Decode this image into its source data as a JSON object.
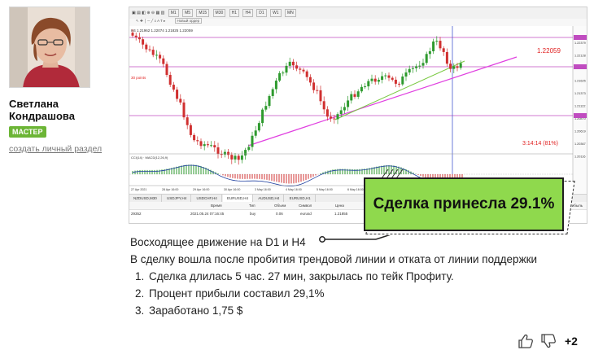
{
  "author": {
    "name_line1": "Светлана",
    "name_line2": "Кондрашова",
    "badge": "МАСТЕР",
    "profile_link": "создать личный раздел"
  },
  "terminal": {
    "toolbar": [
      "M1",
      "M5",
      "M15",
      "M30",
      "H1",
      "H4",
      "D1",
      "W1",
      "MN"
    ],
    "new_order": "Новый ордер",
    "price_labels": [
      "1.22059"
    ],
    "timer_label": "3:14:14 (81%)",
    "points_label": "30 points",
    "y_ticks": [
      "1.22379",
      "1.22128",
      "1.21876",
      "1.21625",
      "1.21373",
      "1.21122",
      "1.20870",
      "1.20619",
      "1.20367",
      "1.20116"
    ],
    "x_ticks": [
      "27 Apr 2021",
      "28 Apr 16:00",
      "29 Apr 16:00",
      "30 Apr 16:00",
      "3 May 16:00",
      "4 May 16:00",
      "5 May 16:00",
      "6 May 16:00",
      "7 May 16:00",
      "10 May 16:00",
      "11 May 16:00",
      "12 May 16:00",
      "13 May 16:00",
      "14 May 16:00"
    ],
    "tabs": [
      "NZDUSD,M30",
      "USDJPY,H4",
      "USDCHF,H4",
      "EURUSD,H4",
      "AUDUSD,H4",
      "EURUSD,H1"
    ],
    "active_tab": "EURUSD,H4",
    "orders_columns": [
      "Время",
      "Тип",
      "Объем",
      "Символ",
      "Цена",
      "Прибыль"
    ],
    "order_row": {
      "ticket": "29352",
      "time": "2021.05.24 07:16:45",
      "type": "buy",
      "volume": "0.06",
      "symbol": "eurusd",
      "price": "1.21855"
    }
  },
  "callout": {
    "text": "Сделка принесла 29.1%",
    "fill": "#8fd94d"
  },
  "description": {
    "heading": "Восходящее движение на D1 и H4",
    "paragraph": "В сделку вошла после пробития трендовой линии и отката от линии поддержки",
    "items": [
      "Сделка длилась 5 час. 27 мин, закрылась по тейк Профиту.",
      "Процент прибыли составил 29,1%",
      "Заработано 1,75 $"
    ]
  },
  "votes": {
    "count": "+2",
    "up_icon": "thumbs-up-icon",
    "down_icon": "thumbs-down-icon"
  },
  "colors": {
    "accent_badge": "#6cb536",
    "bull_candle": "#2e9a2e",
    "bear_candle": "#d03030",
    "trendline": "#e040e0",
    "support_line": "#7ac943",
    "level_line": "#c04cc0",
    "price_label": "#e02020"
  }
}
